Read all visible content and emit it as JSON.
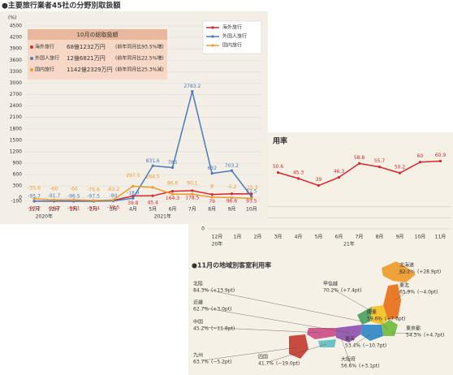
{
  "chart_data": [
    {
      "type": "line",
      "title": "●主要旅行業者45社の分野別取扱額",
      "y_label": "(%)",
      "categories": [
        "11月",
        "12月",
        "1月",
        "2月",
        "3月",
        "4月",
        "5月",
        "6月",
        "7月",
        "8月",
        "9月",
        "10月"
      ],
      "year_labels": [
        "2020年",
        "2021年"
      ],
      "ylim": [
        -100,
        4500
      ],
      "yticks": [
        -100,
        0,
        300,
        600,
        900,
        1200,
        1500,
        1800,
        2100,
        2400,
        2700,
        3000,
        3300,
        3600,
        3900,
        4200,
        4500
      ],
      "grid": true,
      "legend": "upper right",
      "series": [
        {
          "name": "海外旅行",
          "color": "#d7262d",
          "values": [
            -97.2,
            -96.7,
            -98.1,
            -97.4,
            -79.5,
            39.8,
            45.4,
            164.3,
            178.5,
            79.0,
            96.6,
            93.5
          ]
        },
        {
          "name": "外国人旅行",
          "color": "#4a7ab8",
          "values": [
            -95.7,
            -91.7,
            -96.5,
            -97.5,
            -90,
            -18.9,
            831.6,
            783.0,
            2783.2,
            632.0,
            703.2,
            22.5
          ]
        },
        {
          "name": "国内旅行",
          "color": "#ef9a2c",
          "values": [
            -35.6,
            -60.0,
            -60.0,
            -76.6,
            -63.2,
            297.5,
            264.5,
            86.6,
            90.1,
            8.0,
            -5.2,
            -25.3
          ]
        }
      ],
      "summary": {
        "title": "10月の総取扱額",
        "rows": [
          {
            "name": "海外旅行",
            "amount": "68億1232万円",
            "note": "(前年同月比93.5%増)"
          },
          {
            "name": "外国人旅行",
            "amount": "12億6821万円",
            "note": "(前年同月比22.5%増)"
          },
          {
            "name": "国内旅行",
            "amount": "1142億2329万円",
            "note": "(前年同月比25.3%減)"
          }
        ]
      }
    },
    {
      "type": "line",
      "title": "用率",
      "categories": [
        "12月",
        "1月",
        "2月",
        "3月",
        "4月",
        "5月",
        "6月",
        "7月",
        "8月",
        "9月",
        "10月",
        "11月"
      ],
      "year_labels": [
        "20年",
        "21年"
      ],
      "ylim": [
        0,
        70
      ],
      "yticks": [
        0,
        10,
        20
      ],
      "series": [
        {
          "name": "客室利用率",
          "color": "#d7262d",
          "values": [
            null,
            null,
            null,
            50.6,
            45.3,
            39.0,
            46.3,
            58.8,
            55.7,
            50.2,
            60.0,
            60.9
          ]
        }
      ]
    }
  ],
  "map": {
    "title": "●11月の地域別客室利用率",
    "regions": [
      {
        "name": "北海道",
        "rate": "82.2%",
        "change": "(+28.9pt)"
      },
      {
        "name": "東北",
        "rate": "65.9%",
        "change": "(−4.0pt)"
      },
      {
        "name": "甲信越",
        "rate": "70.2%",
        "change": "(+7.4pt)"
      },
      {
        "name": "北陸",
        "rate": "84.3%",
        "change": "(+13.9pt)"
      },
      {
        "name": "近畿",
        "rate": "62.7%",
        "change": "(+3.0pt)"
      },
      {
        "name": "中国",
        "rate": "45.2%",
        "change": "(−11.8pt)"
      },
      {
        "name": "関東",
        "rate": "59.6%",
        "change": "(+7.6pt)"
      },
      {
        "name": "東京都",
        "rate": "54.3%",
        "change": "(+4.7pt)"
      },
      {
        "name": "東海",
        "rate": "53.4%",
        "change": "(−10.7pt)"
      },
      {
        "name": "九州",
        "rate": "63.7%",
        "change": "(−5.2pt)"
      },
      {
        "name": "四国",
        "rate": "41.7%",
        "change": "(−19.0pt)"
      },
      {
        "name": "大阪府",
        "rate": "56.6%",
        "change": "(+3.1pt)"
      }
    ]
  }
}
